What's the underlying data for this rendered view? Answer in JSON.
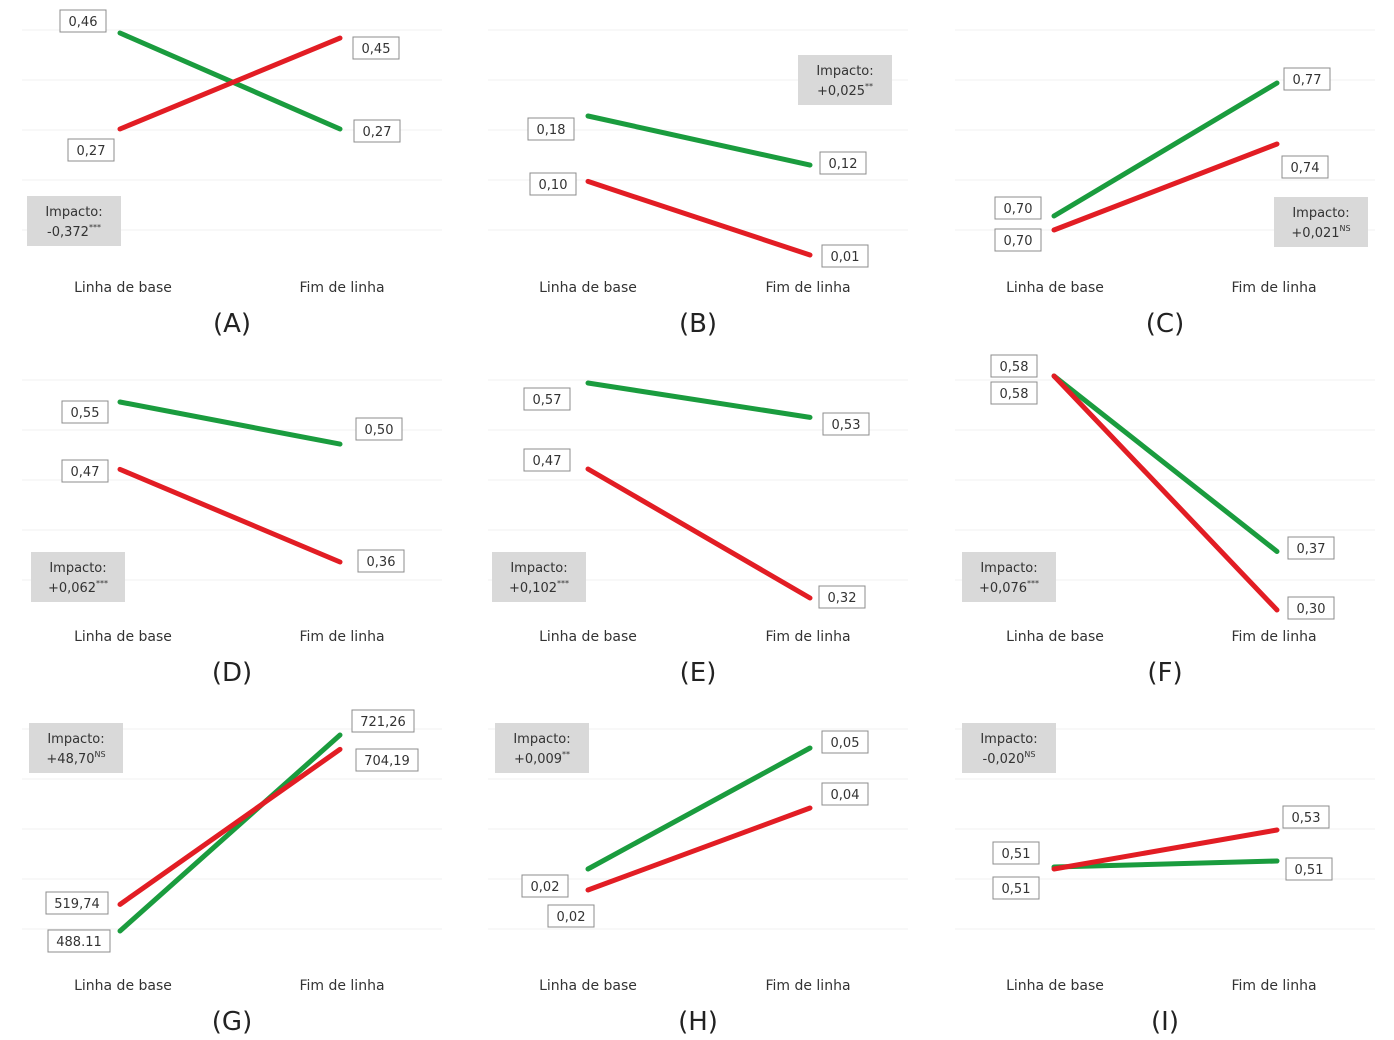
{
  "colors": {
    "green": "#1a9c3e",
    "red": "#e21d24",
    "impact_bg": "#d9d9d9",
    "label_border": "#8c8c8c",
    "grid": "#f1f1f1"
  },
  "chart_data": [
    {
      "type": "line",
      "panel_label": "(A)",
      "categories": [
        "Linha de base",
        "Fim de linha"
      ],
      "series": [
        {
          "color": "green",
          "values": [
            0.46,
            0.27
          ]
        },
        {
          "color": "red",
          "values": [
            0.27,
            0.45
          ]
        }
      ],
      "value_labels": {
        "green": [
          "0,46",
          "0,27"
        ],
        "red": [
          "0,27",
          "0,45"
        ]
      },
      "impact": {
        "label": "Impacto:",
        "value": "-0,372",
        "sig": "***"
      }
    },
    {
      "type": "line",
      "panel_label": "(B)",
      "categories": [
        "Linha de base",
        "Fim de linha"
      ],
      "series": [
        {
          "color": "green",
          "values": [
            0.18,
            0.12
          ]
        },
        {
          "color": "red",
          "values": [
            0.1,
            0.01
          ]
        }
      ],
      "value_labels": {
        "green": [
          "0,18",
          "0,12"
        ],
        "red": [
          "0,10",
          "0,01"
        ]
      },
      "impact": {
        "label": "Impacto:",
        "value": "+0,025",
        "sig": "**"
      }
    },
    {
      "type": "line",
      "panel_label": "(C)",
      "categories": [
        "Linha de base",
        "Fim de linha"
      ],
      "series": [
        {
          "color": "green",
          "values": [
            0.7,
            0.77
          ]
        },
        {
          "color": "red",
          "values": [
            0.7,
            0.74
          ]
        }
      ],
      "value_labels": {
        "green": [
          "0,70",
          "0,77"
        ],
        "red": [
          "0,70",
          "0,74"
        ]
      },
      "impact": {
        "label": "Impacto:",
        "value": "+0,021",
        "sig": "NS"
      }
    },
    {
      "type": "line",
      "panel_label": "(D)",
      "categories": [
        "Linha de base",
        "Fim de linha"
      ],
      "series": [
        {
          "color": "green",
          "values": [
            0.55,
            0.5
          ]
        },
        {
          "color": "red",
          "values": [
            0.47,
            0.36
          ]
        }
      ],
      "value_labels": {
        "green": [
          "0,55",
          "0,50"
        ],
        "red": [
          "0,47",
          "0,36"
        ]
      },
      "impact": {
        "label": "Impacto:",
        "value": "+0,062",
        "sig": "***"
      }
    },
    {
      "type": "line",
      "panel_label": "(E)",
      "categories": [
        "Linha de base",
        "Fim de linha"
      ],
      "series": [
        {
          "color": "green",
          "values": [
            0.57,
            0.53
          ]
        },
        {
          "color": "red",
          "values": [
            0.47,
            0.32
          ]
        }
      ],
      "value_labels": {
        "green": [
          "0,57",
          "0,53"
        ],
        "red": [
          "0,47",
          "0,32"
        ]
      },
      "impact": {
        "label": "Impacto:",
        "value": "+0,102",
        "sig": "***"
      }
    },
    {
      "type": "line",
      "panel_label": "(F)",
      "categories": [
        "Linha de base",
        "Fim de linha"
      ],
      "series": [
        {
          "color": "green",
          "values": [
            0.58,
            0.37
          ]
        },
        {
          "color": "red",
          "values": [
            0.58,
            0.3
          ]
        }
      ],
      "value_labels": {
        "green": [
          "0,58",
          "0,37"
        ],
        "red": [
          "0,58",
          "0,30"
        ]
      },
      "impact": {
        "label": "Impacto:",
        "value": "+0,076",
        "sig": "***"
      }
    },
    {
      "type": "line",
      "panel_label": "(G)",
      "categories": [
        "Linha de base",
        "Fim de linha"
      ],
      "series": [
        {
          "color": "green",
          "values": [
            488.11,
            721.26
          ]
        },
        {
          "color": "red",
          "values": [
            519.74,
            704.19
          ]
        }
      ],
      "value_labels": {
        "green": [
          "488.11",
          "721,26"
        ],
        "red": [
          "519,74",
          "704,19"
        ]
      },
      "impact": {
        "label": "Impacto:",
        "value": "+48,70",
        "sig": "NS"
      }
    },
    {
      "type": "line",
      "panel_label": "(H)",
      "categories": [
        "Linha de base",
        "Fim de linha"
      ],
      "series": [
        {
          "color": "green",
          "values": [
            0.02,
            0.05
          ]
        },
        {
          "color": "red",
          "values": [
            0.02,
            0.04
          ]
        }
      ],
      "value_labels": {
        "green": [
          "0,02",
          "0,05"
        ],
        "red": [
          "0,02",
          "0,04"
        ]
      },
      "impact": {
        "label": "Impacto:",
        "value": "+0,009",
        "sig": "**"
      }
    },
    {
      "type": "line",
      "panel_label": "(I)",
      "categories": [
        "Linha de base",
        "Fim de linha"
      ],
      "series": [
        {
          "color": "green",
          "values": [
            0.51,
            0.51
          ]
        },
        {
          "color": "red",
          "values": [
            0.51,
            0.53
          ]
        }
      ],
      "value_labels": {
        "green": [
          "0,51",
          "0,51"
        ],
        "red": [
          "0,51",
          "0,53"
        ]
      },
      "impact": {
        "label": "Impacto:",
        "value": "-0,020",
        "sig": "NS"
      }
    }
  ]
}
